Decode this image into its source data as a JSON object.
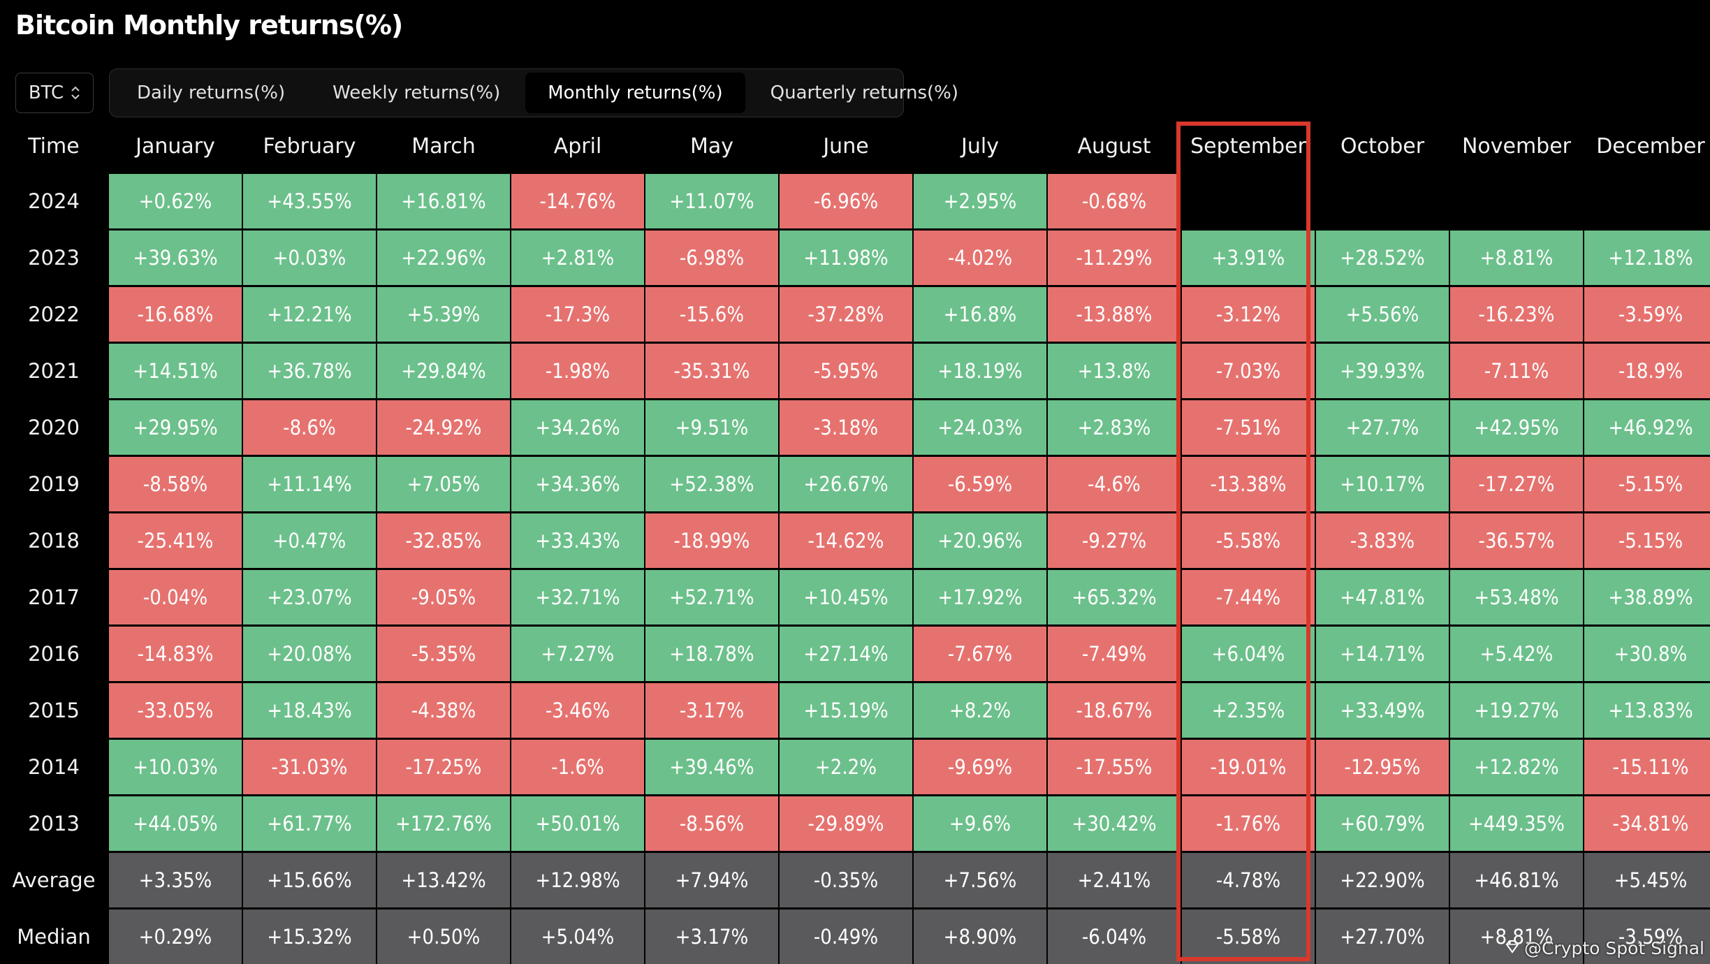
{
  "title": "Bitcoin Monthly returns(%)",
  "asset_select": {
    "value": "BTC"
  },
  "tabs": [
    {
      "label": "Daily returns(%)",
      "active": false
    },
    {
      "label": "Weekly returns(%)",
      "active": false
    },
    {
      "label": "Monthly returns(%)",
      "active": true
    },
    {
      "label": "Quarterly returns(%)",
      "active": false
    }
  ],
  "table": {
    "corner_label": "Time",
    "months": [
      "January",
      "February",
      "March",
      "April",
      "May",
      "June",
      "July",
      "August",
      "September",
      "October",
      "November",
      "December"
    ],
    "highlighted_month": "September",
    "rows": [
      {
        "label": "2024",
        "values": [
          "+0.62%",
          "+43.55%",
          "+16.81%",
          "-14.76%",
          "+11.07%",
          "-6.96%",
          "+2.95%",
          "-0.68%",
          "",
          "",
          "",
          ""
        ]
      },
      {
        "label": "2023",
        "values": [
          "+39.63%",
          "+0.03%",
          "+22.96%",
          "+2.81%",
          "-6.98%",
          "+11.98%",
          "-4.02%",
          "-11.29%",
          "+3.91%",
          "+28.52%",
          "+8.81%",
          "+12.18%"
        ]
      },
      {
        "label": "2022",
        "values": [
          "-16.68%",
          "+12.21%",
          "+5.39%",
          "-17.3%",
          "-15.6%",
          "-37.28%",
          "+16.8%",
          "-13.88%",
          "-3.12%",
          "+5.56%",
          "-16.23%",
          "-3.59%"
        ]
      },
      {
        "label": "2021",
        "values": [
          "+14.51%",
          "+36.78%",
          "+29.84%",
          "-1.98%",
          "-35.31%",
          "-5.95%",
          "+18.19%",
          "+13.8%",
          "-7.03%",
          "+39.93%",
          "-7.11%",
          "-18.9%"
        ]
      },
      {
        "label": "2020",
        "values": [
          "+29.95%",
          "-8.6%",
          "-24.92%",
          "+34.26%",
          "+9.51%",
          "-3.18%",
          "+24.03%",
          "+2.83%",
          "-7.51%",
          "+27.7%",
          "+42.95%",
          "+46.92%"
        ]
      },
      {
        "label": "2019",
        "values": [
          "-8.58%",
          "+11.14%",
          "+7.05%",
          "+34.36%",
          "+52.38%",
          "+26.67%",
          "-6.59%",
          "-4.6%",
          "-13.38%",
          "+10.17%",
          "-17.27%",
          "-5.15%"
        ]
      },
      {
        "label": "2018",
        "values": [
          "-25.41%",
          "+0.47%",
          "-32.85%",
          "+33.43%",
          "-18.99%",
          "-14.62%",
          "+20.96%",
          "-9.27%",
          "-5.58%",
          "-3.83%",
          "-36.57%",
          "-5.15%"
        ]
      },
      {
        "label": "2017",
        "values": [
          "-0.04%",
          "+23.07%",
          "-9.05%",
          "+32.71%",
          "+52.71%",
          "+10.45%",
          "+17.92%",
          "+65.32%",
          "-7.44%",
          "+47.81%",
          "+53.48%",
          "+38.89%"
        ]
      },
      {
        "label": "2016",
        "values": [
          "-14.83%",
          "+20.08%",
          "-5.35%",
          "+7.27%",
          "+18.78%",
          "+27.14%",
          "-7.67%",
          "-7.49%",
          "+6.04%",
          "+14.71%",
          "+5.42%",
          "+30.8%"
        ]
      },
      {
        "label": "2015",
        "values": [
          "-33.05%",
          "+18.43%",
          "-4.38%",
          "-3.46%",
          "-3.17%",
          "+15.19%",
          "+8.2%",
          "-18.67%",
          "+2.35%",
          "+33.49%",
          "+19.27%",
          "+13.83%"
        ]
      },
      {
        "label": "2014",
        "values": [
          "+10.03%",
          "-31.03%",
          "-17.25%",
          "-1.6%",
          "+39.46%",
          "+2.2%",
          "-9.69%",
          "-17.55%",
          "-19.01%",
          "-12.95%",
          "+12.82%",
          "-15.11%"
        ]
      },
      {
        "label": "2013",
        "values": [
          "+44.05%",
          "+61.77%",
          "+172.76%",
          "+50.01%",
          "-8.56%",
          "-29.89%",
          "+9.6%",
          "+30.42%",
          "-1.76%",
          "+60.79%",
          "+449.35%",
          "-34.81%"
        ]
      }
    ],
    "summary_rows": [
      {
        "label": "Average",
        "values": [
          "+3.35%",
          "+15.66%",
          "+13.42%",
          "+12.98%",
          "+7.94%",
          "-0.35%",
          "+7.56%",
          "+2.41%",
          "-4.78%",
          "+22.90%",
          "+46.81%",
          "+5.45%"
        ]
      },
      {
        "label": "Median",
        "values": [
          "+0.29%",
          "+15.32%",
          "+0.50%",
          "+5.04%",
          "+3.17%",
          "-0.49%",
          "+8.90%",
          "-6.04%",
          "-5.58%",
          "+27.70%",
          "+8.81%",
          "-3.59%"
        ]
      }
    ]
  },
  "colors": {
    "positive": "#6cc08b",
    "negative": "#e6726f",
    "summary": "#5a5a5c",
    "highlight": "#d9382c"
  },
  "watermark": {
    "text": "@Crypto Spot Signal",
    "icon": "diamond-logo-icon"
  }
}
